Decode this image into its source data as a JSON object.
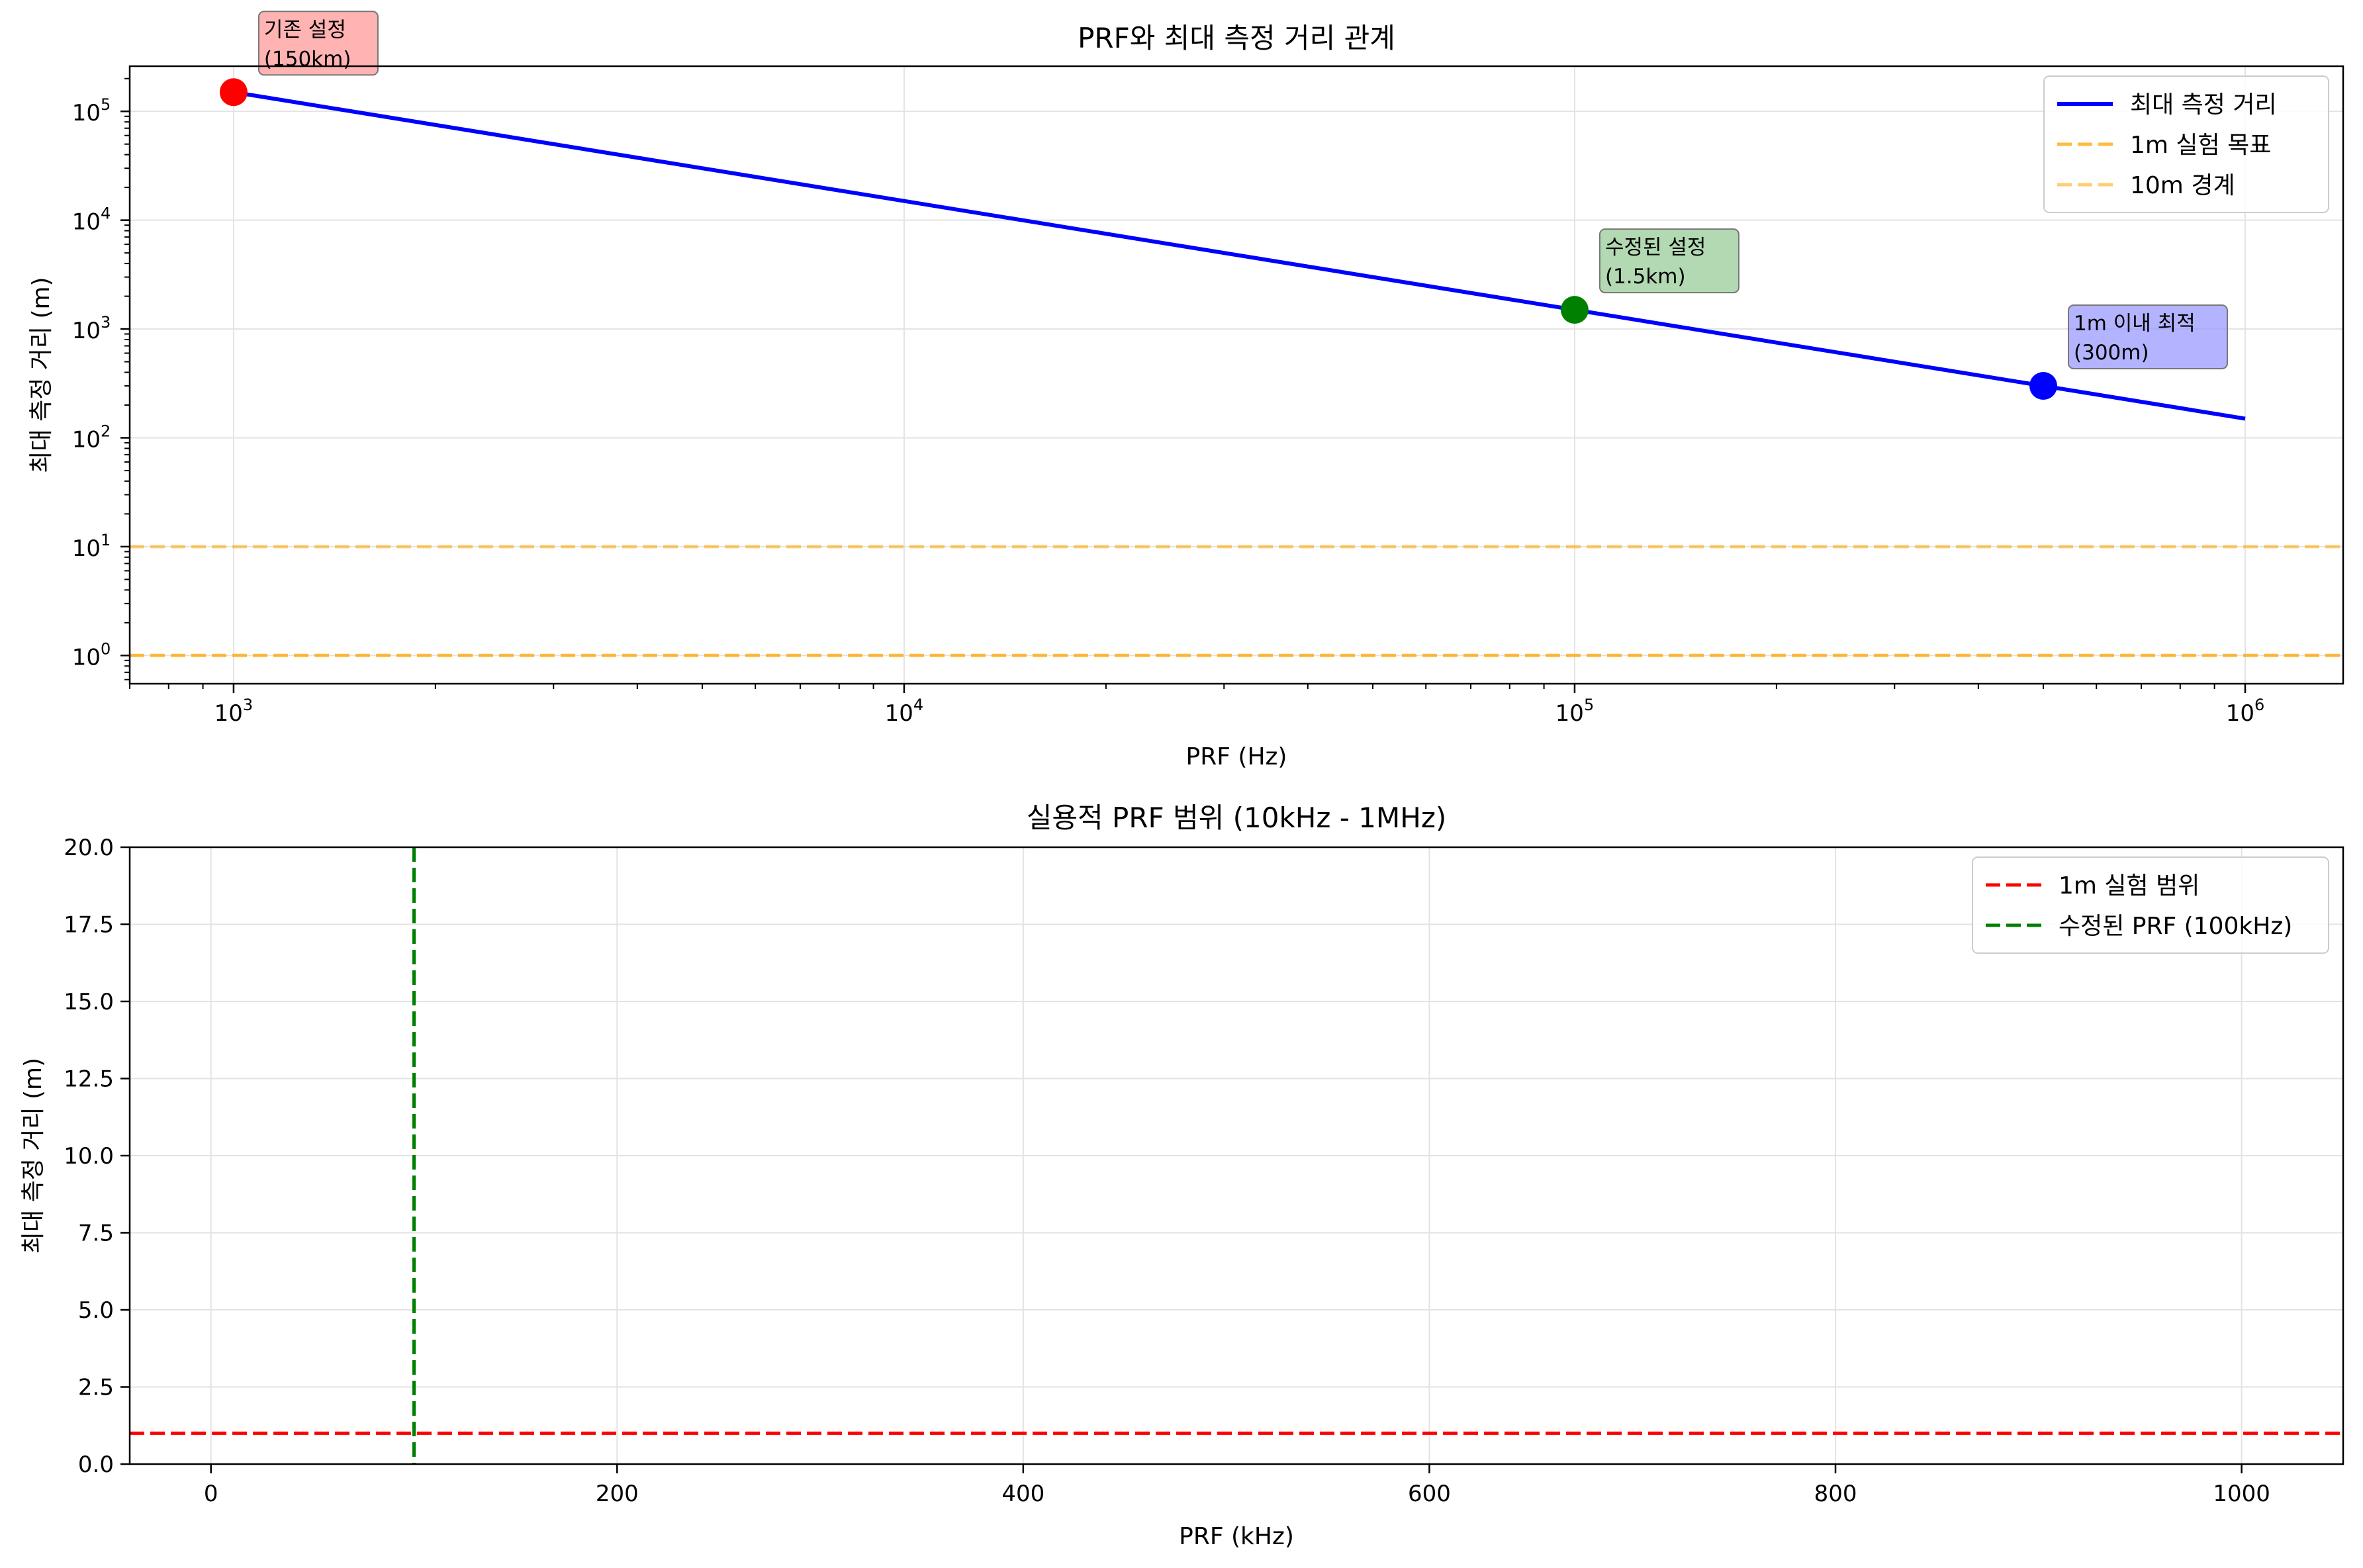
{
  "chart_data": [
    {
      "type": "line",
      "title": "PRF와 최대 측정 거리 관계",
      "xlabel": "PRF (Hz)",
      "ylabel": "최대 측정 거리 (m)",
      "xscale": "log",
      "yscale": "log",
      "xlim": [
        700,
        1400000
      ],
      "ylim": [
        0.55,
        260000
      ],
      "x_ticks": [
        {
          "value": 1000,
          "base": "10",
          "exp": "3"
        },
        {
          "value": 10000,
          "base": "10",
          "exp": "4"
        },
        {
          "value": 100000,
          "base": "10",
          "exp": "5"
        },
        {
          "value": 1000000,
          "base": "10",
          "exp": "6"
        }
      ],
      "y_ticks": [
        {
          "value": 1,
          "base": "10",
          "exp": "0"
        },
        {
          "value": 10,
          "base": "10",
          "exp": "1"
        },
        {
          "value": 100,
          "base": "10",
          "exp": "2"
        },
        {
          "value": 1000,
          "base": "10",
          "exp": "3"
        },
        {
          "value": 10000,
          "base": "10",
          "exp": "4"
        },
        {
          "value": 100000,
          "base": "10",
          "exp": "5"
        }
      ],
      "grid": true,
      "legend_position": "top-right",
      "series": [
        {
          "name": "최대 측정 거리",
          "color": "#0000ff",
          "style": "solid",
          "x": [
            1000,
            1000000
          ],
          "y": [
            150000,
            150
          ]
        },
        {
          "name": "1m 실험 목표",
          "color": "#ffa500",
          "style": "dashed",
          "hline": 1
        },
        {
          "name": "10m 경계",
          "color": "#ffa500",
          "style": "dashed",
          "hline": 10
        }
      ],
      "points": [
        {
          "x": 1000,
          "y": 150000,
          "color": "#ff0000",
          "label_line1": "기존 설정",
          "label_line2": "(150km)",
          "box_color": "#ff9999"
        },
        {
          "x": 100000,
          "y": 1500,
          "color": "#008000",
          "label_line1": "수정된 설정",
          "label_line2": "(1.5km)",
          "box_color": "#99cc99"
        },
        {
          "x": 500000,
          "y": 300,
          "color": "#0000ff",
          "label_line1": "1m 이내 최적",
          "label_line2": "(300m)",
          "box_color": "#9999ff"
        }
      ]
    },
    {
      "type": "line",
      "title": "실용적 PRF 범위 (10kHz - 1MHz)",
      "xlabel": "PRF (kHz)",
      "ylabel": "최대 측정 거리 (m)",
      "xlim": [
        -40,
        1050
      ],
      "ylim": [
        0,
        20
      ],
      "x_ticks": [
        0,
        200,
        400,
        600,
        800,
        1000
      ],
      "y_ticks": [
        "0.0",
        "2.5",
        "5.0",
        "7.5",
        "10.0",
        "12.5",
        "15.0",
        "17.5",
        "20.0"
      ],
      "grid": true,
      "legend_position": "top-right",
      "series": [
        {
          "name": "1m 실험 범위",
          "color": "#ff0000",
          "style": "dashed",
          "hline": 1
        },
        {
          "name": "수정된 PRF (100kHz)",
          "color": "#008000",
          "style": "dashed",
          "vline": 100
        }
      ]
    }
  ]
}
